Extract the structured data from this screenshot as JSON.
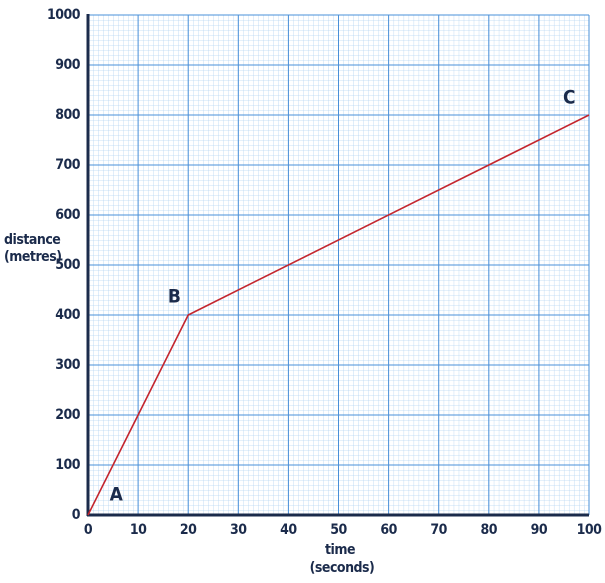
{
  "chart_data": {
    "type": "line",
    "x": [
      0,
      20,
      100
    ],
    "values": [
      0,
      400,
      800
    ],
    "point_labels": [
      "A",
      "B",
      "C"
    ],
    "color": "#c4262e",
    "xlabel": [
      "time",
      "(seconds)"
    ],
    "ylabel": [
      "distance",
      "(metres)"
    ],
    "xlim": [
      0,
      100
    ],
    "xticks": [
      0,
      10,
      20,
      30,
      40,
      50,
      60,
      70,
      80,
      90,
      100
    ],
    "ylim": [
      0,
      1000
    ],
    "yticks": [
      0,
      100,
      200,
      300,
      400,
      500,
      600,
      700,
      800,
      900,
      1000
    ],
    "grid": true
  }
}
